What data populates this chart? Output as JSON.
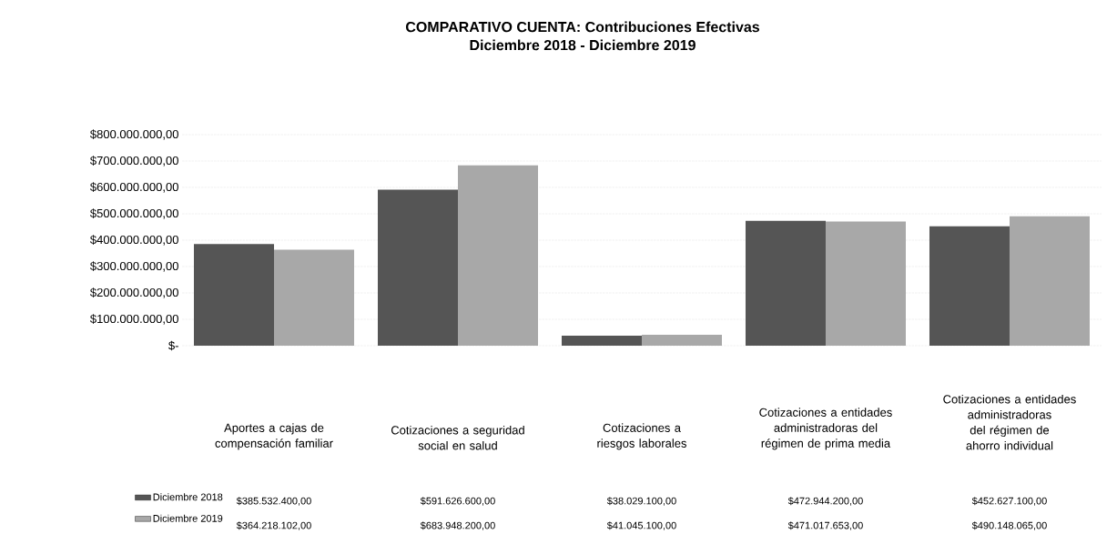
{
  "chart_data": {
    "type": "bar",
    "title": "COMPARATIVO CUENTA: Contribuciones Efectivas",
    "subtitle": "Diciembre 2018 - Diciembre 2019",
    "categories": [
      "Aportes a cajas de compensación familiar",
      "Cotizaciones a seguridad social en salud",
      "Cotizaciones a riesgos laborales",
      "Cotizaciones a entidades administradoras del régimen de prima media",
      "Cotizaciones a entidades administradoras del régimen de ahorro individual"
    ],
    "series": [
      {
        "name": "Diciembre 2018",
        "color": "#555555",
        "values": [
          385532400,
          591626600,
          38029100,
          472944200,
          452627100
        ],
        "value_labels": [
          "$385.532.400,00",
          "$591.626.600,00",
          "$38.029.100,00",
          "$472.944.200,00",
          "$452.627.100,00"
        ]
      },
      {
        "name": "Diciembre 2019",
        "color": "#a8a8a8",
        "values": [
          364218102,
          683948200,
          41045100,
          471017653,
          490148065
        ],
        "value_labels": [
          "$364.218.102,00",
          "$683.948.200,00",
          "$41.045.100,00",
          "$471.017.653,00",
          "$490.148.065,00"
        ]
      }
    ],
    "ylim": [
      0,
      800000000
    ],
    "yticks": [
      {
        "value": 0,
        "label": "$-"
      },
      {
        "value": 100000000,
        "label": "$100.000.000,00"
      },
      {
        "value": 200000000,
        "label": "$200.000.000,00"
      },
      {
        "value": 300000000,
        "label": "$300.000.000,00"
      },
      {
        "value": 400000000,
        "label": "$400.000.000,00"
      },
      {
        "value": 500000000,
        "label": "$500.000.000,00"
      },
      {
        "value": 600000000,
        "label": "$600.000.000,00"
      },
      {
        "value": 700000000,
        "label": "$700.000.000,00"
      },
      {
        "value": 800000000,
        "label": "$800.000.000,00"
      }
    ],
    "grid": "y",
    "legend": "bottom left"
  }
}
